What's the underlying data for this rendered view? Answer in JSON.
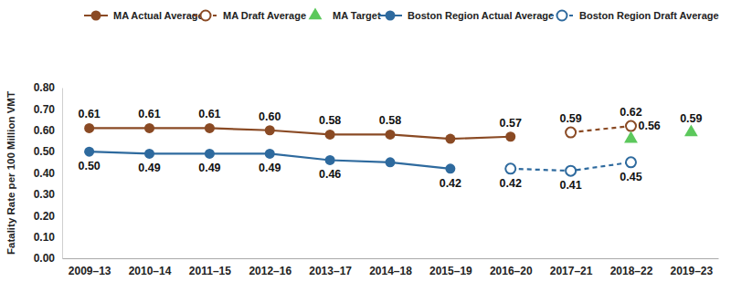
{
  "chart_data": {
    "type": "line",
    "y_label": "Fatality Rate per 100 Million VMT",
    "categories": [
      "2009–13",
      "2010–14",
      "2011–15",
      "2012–16",
      "2013–17",
      "2014–18",
      "2015–19",
      "2016–20",
      "2017–21",
      "2018–22",
      "2019–23"
    ],
    "ylim": [
      0,
      0.8
    ],
    "yticks": [
      {
        "value": 0,
        "label": "0.00"
      },
      {
        "value": 0.1,
        "label": "0.10"
      },
      {
        "value": 0.2,
        "label": "0.20"
      },
      {
        "value": 0.3,
        "label": "0.30"
      },
      {
        "value": 0.4,
        "label": "0.40"
      },
      {
        "value": 0.5,
        "label": "0.50"
      },
      {
        "value": 0.6,
        "label": "0.60"
      },
      {
        "value": 0.7,
        "label": "0.70"
      },
      {
        "value": 0.8,
        "label": "0.80"
      }
    ],
    "grid": false,
    "legend": "top",
    "data_labels": true,
    "series": [
      {
        "name": "MA Actual Average",
        "color": "#8a4a24",
        "marker": "circle",
        "line_style": "solid",
        "type": "line",
        "values": [
          0.61,
          0.61,
          0.61,
          0.6,
          0.58,
          0.58,
          0.56,
          0.57,
          null,
          null,
          null
        ],
        "value_labels": [
          "0.61",
          "0.61",
          "0.61",
          "0.60",
          "0.58",
          "0.58",
          null,
          "0.57",
          null,
          null,
          null
        ]
      },
      {
        "name": "MA Draft Average",
        "color": "#8a4a24",
        "marker": "open-circle",
        "line_style": "dashed",
        "type": "line",
        "values": [
          null,
          null,
          null,
          null,
          null,
          null,
          null,
          null,
          0.59,
          0.62,
          null
        ],
        "value_labels": [
          null,
          null,
          null,
          null,
          null,
          null,
          null,
          null,
          "0.59",
          "0.62",
          null
        ]
      },
      {
        "name": "MA Target",
        "color": "#5cc85c",
        "marker": "triangle",
        "line_style": "none",
        "type": "scatter",
        "values": [
          null,
          null,
          null,
          null,
          null,
          null,
          null,
          null,
          null,
          0.56,
          0.59
        ],
        "value_labels": [
          null,
          null,
          null,
          null,
          null,
          null,
          null,
          null,
          null,
          "0.56",
          "0.59"
        ]
      },
      {
        "name": "Boston Region Actual Average",
        "color": "#2e6a9e",
        "marker": "circle",
        "line_style": "solid",
        "type": "line",
        "values": [
          0.5,
          0.49,
          0.49,
          0.49,
          0.46,
          0.45,
          0.42,
          null,
          null,
          null,
          null
        ],
        "value_labels": [
          "0.50",
          "0.49",
          "0.49",
          "0.49",
          "0.46",
          null,
          "0.42",
          null,
          null,
          null,
          null
        ]
      },
      {
        "name": "Boston Region Draft Average",
        "color": "#2e6a9e",
        "marker": "open-circle",
        "line_style": "dashed",
        "type": "line",
        "values": [
          null,
          null,
          null,
          null,
          null,
          null,
          null,
          0.42,
          0.41,
          0.45,
          null
        ],
        "value_labels": [
          null,
          null,
          null,
          null,
          null,
          null,
          null,
          "0.42",
          "0.41",
          "0.45",
          null
        ]
      }
    ]
  }
}
